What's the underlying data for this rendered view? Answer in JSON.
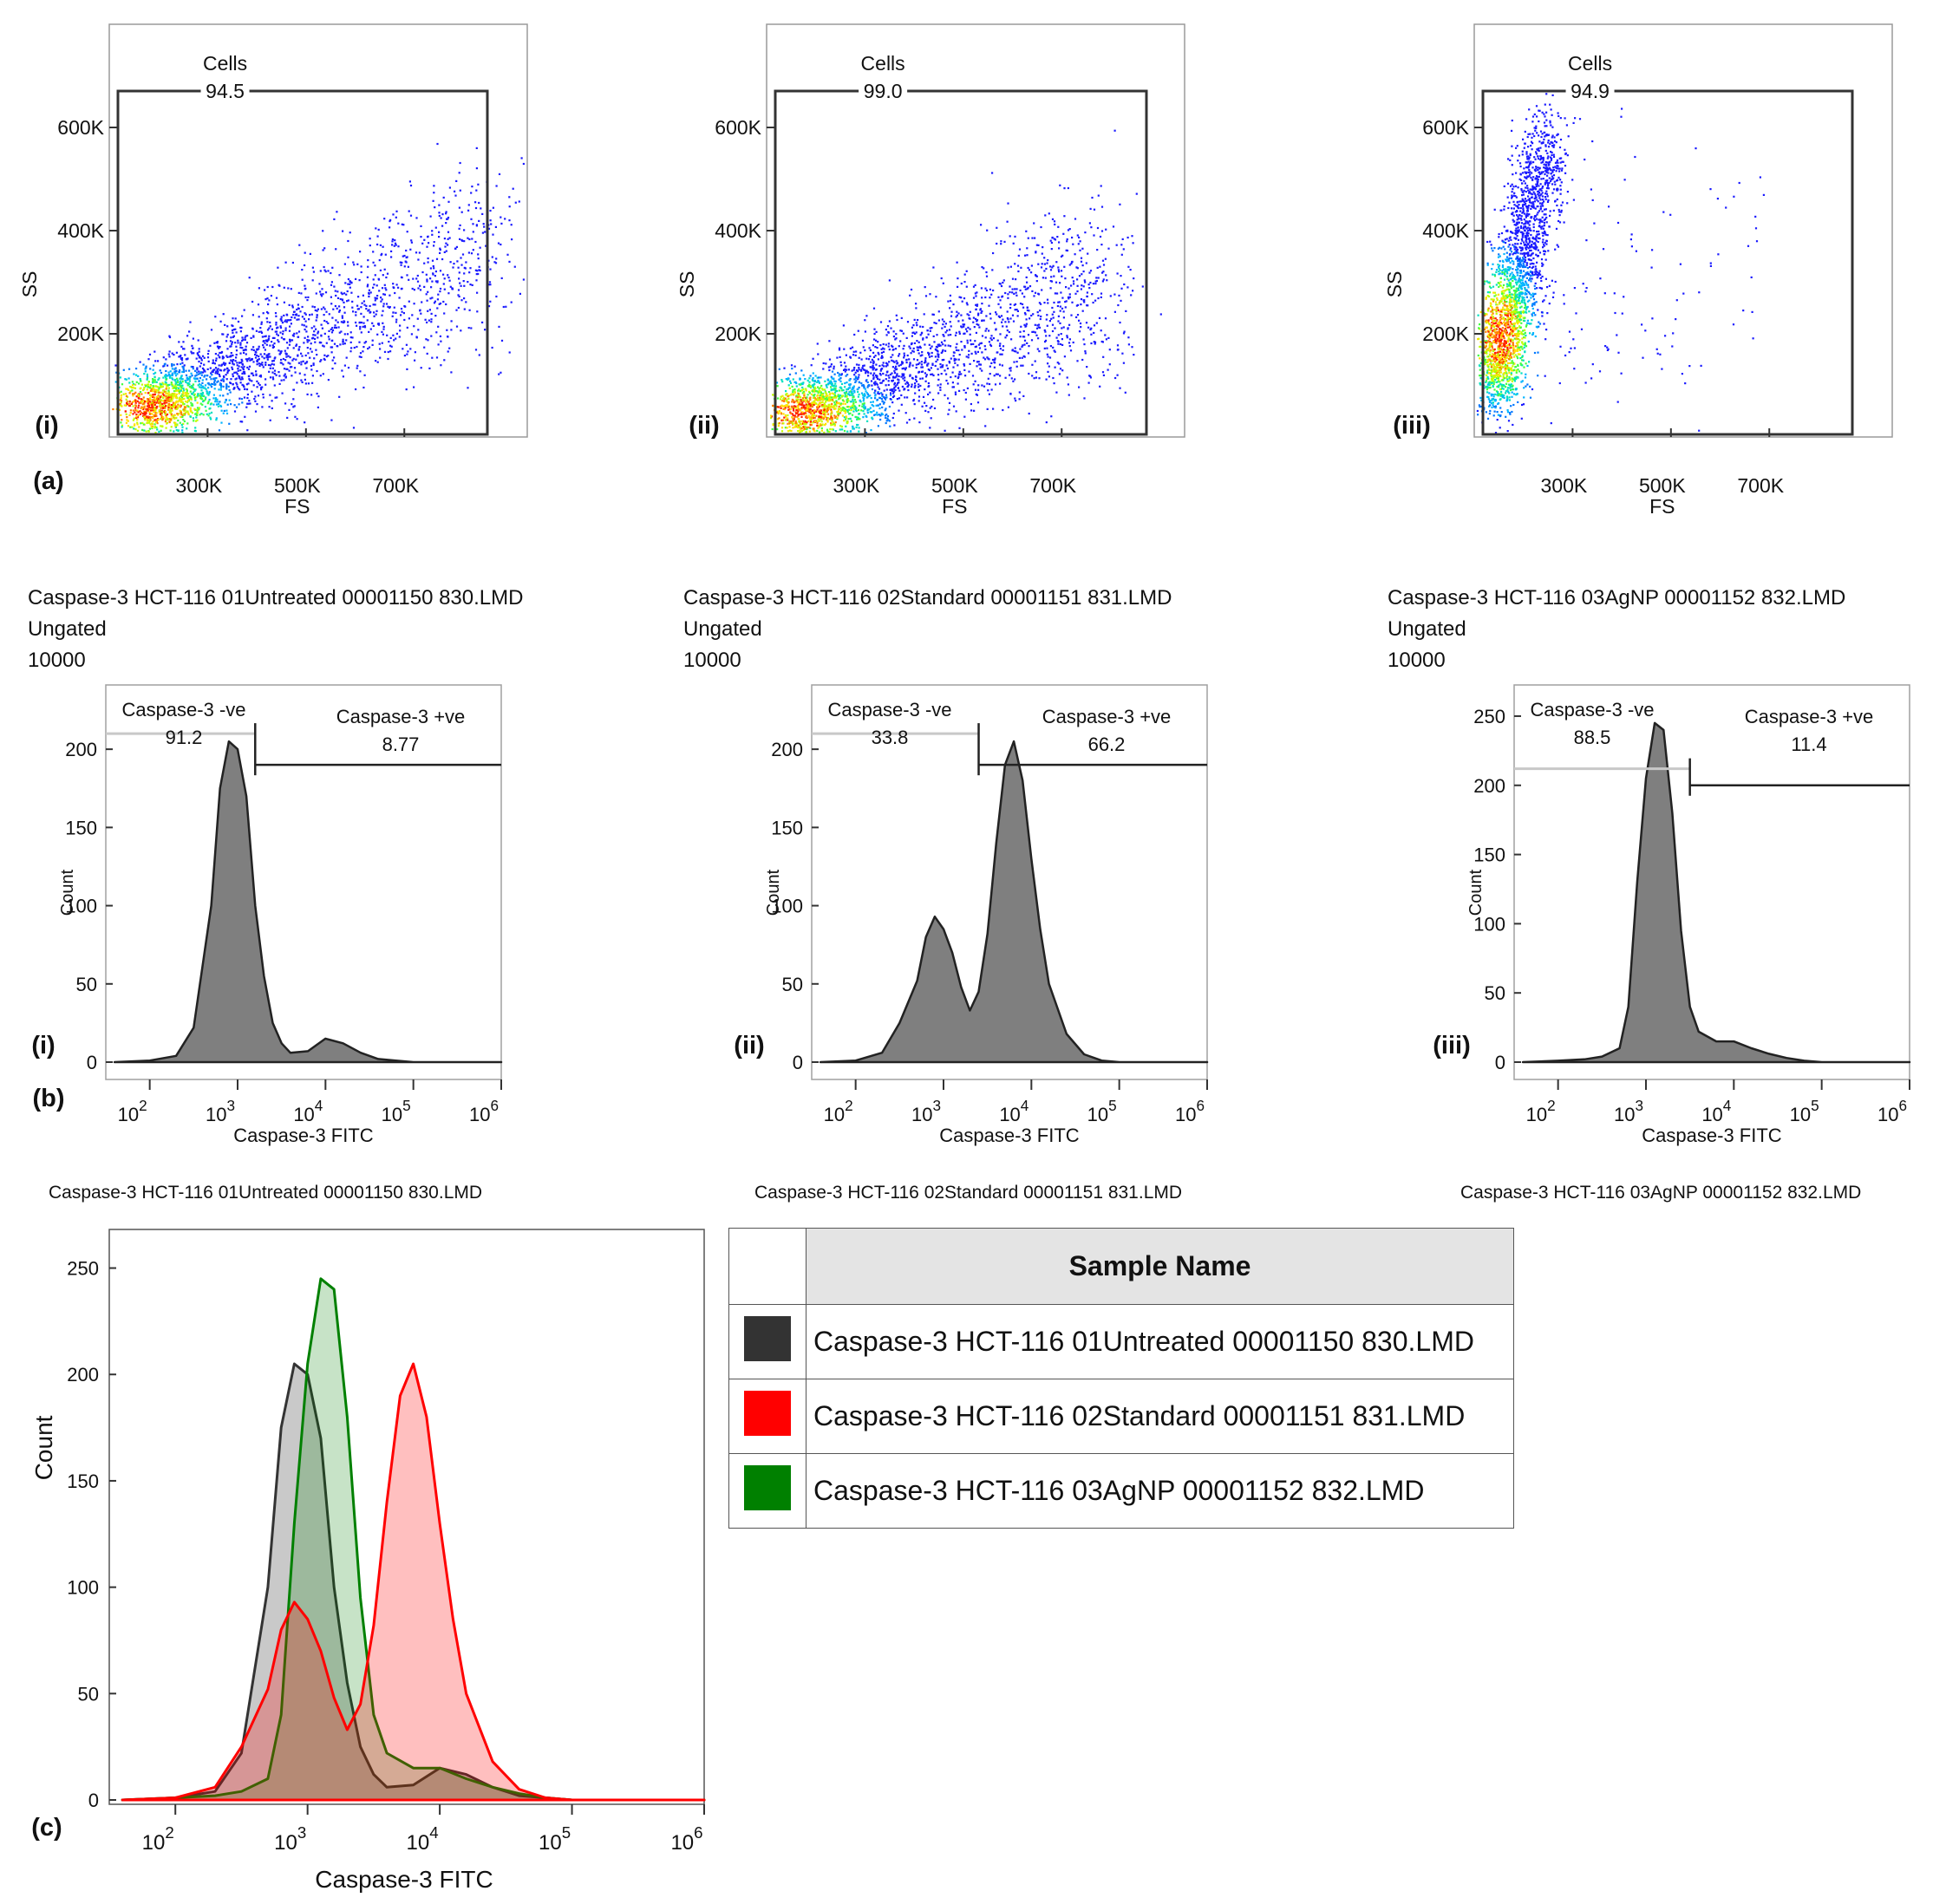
{
  "figure": {
    "panel_letters": [
      "(a)",
      "(b)",
      "(c)"
    ],
    "roman": [
      "(i)",
      "(ii)",
      "(iii)"
    ]
  },
  "scatter_panels": [
    {
      "gate_name": "Cells",
      "gate_value": "94.5",
      "x_label": "FS",
      "y_label": "SS",
      "x_ticks": [
        "300K",
        "500K",
        "700K"
      ],
      "y_ticks": [
        "200K",
        "400K",
        "600K"
      ]
    },
    {
      "gate_name": "Cells",
      "gate_value": "99.0",
      "x_label": "FS",
      "y_label": "SS",
      "x_ticks": [
        "300K",
        "500K",
        "700K"
      ],
      "y_ticks": [
        "200K",
        "400K",
        "600K"
      ]
    },
    {
      "gate_name": "Cells",
      "gate_value": "94.9",
      "x_label": "FS",
      "y_label": "SS",
      "x_ticks": [
        "300K",
        "500K",
        "700K"
      ],
      "y_ticks": [
        "200K",
        "400K",
        "600K"
      ]
    }
  ],
  "histogram_panels": [
    {
      "sample": "Caspase-3 HCT-116 01Untreated 00001150 830.LMD",
      "gate": "Ungated",
      "events": "10000",
      "neg_label": "Caspase-3 -ve",
      "neg_value": "91.2",
      "pos_label": "Caspase-3 +ve",
      "pos_value": "8.77",
      "caption": "Caspase-3 HCT-116 01Untreated 00001150 830.LMD"
    },
    {
      "sample": "Caspase-3 HCT-116 02Standard 00001151 831.LMD",
      "gate": "Ungated",
      "events": "10000",
      "neg_label": "Caspase-3 -ve",
      "neg_value": "33.8",
      "pos_label": "Caspase-3 +ve",
      "pos_value": "66.2",
      "caption": "Caspase-3 HCT-116 02Standard 00001151 831.LMD"
    },
    {
      "sample": "Caspase-3 HCT-116 03AgNP 00001152 832.LMD",
      "gate": "Ungated",
      "events": "10000",
      "neg_label": "Caspase-3 -ve",
      "neg_value": "88.5",
      "pos_label": "Caspase-3 +ve",
      "pos_value": "11.4",
      "caption": "Caspase-3 HCT-116 03AgNP 00001152 832.LMD"
    }
  ],
  "legend": {
    "header": "Sample Name",
    "rows": [
      {
        "label": "Caspase-3 HCT-116 01Untreated 00001150 830.LMD",
        "color": "#333333"
      },
      {
        "label": "Caspase-3 HCT-116 02Standard 00001151 831.LMD",
        "color": "#ff0000"
      },
      {
        "label": "Caspase-3 HCT-116 03AgNP 00001152 832.LMD",
        "color": "#008000"
      }
    ]
  },
  "chart_data": [
    {
      "type": "scatter",
      "title": "(a)(i)",
      "xlabel": "FS",
      "ylabel": "SS",
      "xlim": [
        100000,
        950000
      ],
      "ylim": [
        0,
        800000
      ],
      "x_ticks": [
        300000,
        500000,
        700000
      ],
      "y_ticks": [
        200000,
        400000,
        600000
      ],
      "gate": {
        "name": "Cells",
        "percent": 94.5
      },
      "cloud": {
        "center": [
          180000,
          60000
        ],
        "trend": "diagonal, spreading to 900K FS / 350K SS"
      }
    },
    {
      "type": "scatter",
      "title": "(a)(ii)",
      "xlabel": "FS",
      "ylabel": "SS",
      "xlim": [
        100000,
        950000
      ],
      "ylim": [
        0,
        800000
      ],
      "x_ticks": [
        300000,
        500000,
        700000
      ],
      "y_ticks": [
        200000,
        400000,
        600000
      ],
      "gate": {
        "name": "Cells",
        "percent": 99.0
      },
      "cloud": {
        "center": [
          170000,
          50000
        ],
        "trend": "diagonal, spreading to 850K FS / 300K SS"
      }
    },
    {
      "type": "scatter",
      "title": "(a)(iii)",
      "xlabel": "FS",
      "ylabel": "SS",
      "xlim": [
        100000,
        950000
      ],
      "ylim": [
        0,
        800000
      ],
      "x_ticks": [
        300000,
        500000,
        700000
      ],
      "y_ticks": [
        200000,
        400000,
        600000
      ],
      "gate": {
        "name": "Cells",
        "percent": 94.9
      },
      "cloud": {
        "center": [
          150000,
          200000
        ],
        "trend": "steep vertical band reaching 700K SS"
      }
    },
    {
      "type": "area",
      "title": "Caspase-3 HCT-116 01Untreated 00001150 830.LMD",
      "xlabel": "Caspase-3 FITC",
      "ylabel": "Count",
      "xscale": "log",
      "xlim": [
        1.5,
        6
      ],
      "ylim": [
        0,
        230
      ],
      "x_ticks": [
        "10^2",
        "10^3",
        "10^4",
        "10^5",
        "10^6"
      ],
      "y_ticks": [
        0,
        50,
        100,
        150,
        200
      ],
      "gates": [
        {
          "name": "Caspase-3 -ve",
          "percent": 91.2
        },
        {
          "name": "Caspase-3 +ve",
          "percent": 8.77
        }
      ],
      "x": [
        1.6,
        2.0,
        2.3,
        2.5,
        2.7,
        2.8,
        2.9,
        3.0,
        3.1,
        3.2,
        3.3,
        3.4,
        3.5,
        3.6,
        3.8,
        4.0,
        4.2,
        4.4,
        4.6,
        4.8,
        5.0,
        5.5,
        6.0
      ],
      "values": [
        0,
        1,
        4,
        22,
        100,
        175,
        205,
        200,
        170,
        100,
        55,
        25,
        12,
        6,
        7,
        15,
        12,
        6,
        2,
        1,
        0,
        0,
        0
      ]
    },
    {
      "type": "area",
      "title": "Caspase-3 HCT-116 02Standard 00001151 831.LMD",
      "xlabel": "Caspase-3 FITC",
      "ylabel": "Count",
      "xscale": "log",
      "xlim": [
        1.5,
        6
      ],
      "ylim": [
        0,
        230
      ],
      "x_ticks": [
        "10^2",
        "10^3",
        "10^4",
        "10^5",
        "10^6"
      ],
      "y_ticks": [
        0,
        50,
        100,
        150,
        200
      ],
      "gates": [
        {
          "name": "Caspase-3 -ve",
          "percent": 33.8
        },
        {
          "name": "Caspase-3 +ve",
          "percent": 66.2
        }
      ],
      "x": [
        1.6,
        2.0,
        2.3,
        2.5,
        2.7,
        2.8,
        2.9,
        3.0,
        3.1,
        3.2,
        3.3,
        3.4,
        3.5,
        3.6,
        3.7,
        3.8,
        3.9,
        4.0,
        4.1,
        4.2,
        4.4,
        4.6,
        4.8,
        5.0,
        5.5,
        6.0
      ],
      "values": [
        0,
        1,
        6,
        25,
        52,
        80,
        93,
        85,
        70,
        48,
        33,
        45,
        82,
        140,
        190,
        205,
        180,
        130,
        85,
        50,
        18,
        5,
        1,
        0,
        0,
        0
      ]
    },
    {
      "type": "area",
      "title": "Caspase-3 HCT-116 03AgNP 00001152 832.LMD",
      "xlabel": "Caspase-3 FITC",
      "ylabel": "Count",
      "xscale": "log",
      "xlim": [
        1.5,
        6
      ],
      "ylim": [
        0,
        260
      ],
      "x_ticks": [
        "10^2",
        "10^3",
        "10^4",
        "10^5",
        "10^6"
      ],
      "y_ticks": [
        0,
        50,
        100,
        150,
        200,
        250
      ],
      "gates": [
        {
          "name": "Caspase-3 -ve",
          "percent": 88.5
        },
        {
          "name": "Caspase-3 +ve",
          "percent": 11.4
        }
      ],
      "x": [
        1.6,
        2.0,
        2.3,
        2.5,
        2.7,
        2.8,
        2.9,
        3.0,
        3.1,
        3.2,
        3.3,
        3.4,
        3.5,
        3.6,
        3.8,
        4.0,
        4.2,
        4.4,
        4.6,
        4.8,
        5.0,
        5.5,
        6.0
      ],
      "values": [
        0,
        1,
        2,
        4,
        10,
        40,
        130,
        205,
        245,
        240,
        180,
        95,
        40,
        22,
        15,
        15,
        10,
        6,
        3,
        1,
        0,
        0,
        0
      ]
    },
    {
      "type": "area",
      "title": "(c) overlay",
      "xlabel": "Caspase-3 FITC",
      "ylabel": "Count",
      "xscale": "log",
      "xlim": [
        1.5,
        6
      ],
      "ylim": [
        0,
        260
      ],
      "x_ticks": [
        "10^2",
        "10^3",
        "10^4",
        "10^5",
        "10^6"
      ],
      "y_ticks": [
        0,
        50,
        100,
        150,
        200,
        250
      ],
      "series": [
        {
          "name": "Caspase-3 HCT-116 01Untreated 00001150 830.LMD",
          "color": "#333333",
          "x": [
            1.6,
            2.0,
            2.3,
            2.5,
            2.7,
            2.8,
            2.9,
            3.0,
            3.1,
            3.2,
            3.3,
            3.4,
            3.5,
            3.6,
            3.8,
            4.0,
            4.2,
            4.4,
            4.6,
            4.8,
            5.0,
            5.5,
            6.0
          ],
          "values": [
            0,
            1,
            4,
            22,
            100,
            175,
            205,
            200,
            170,
            100,
            55,
            25,
            12,
            6,
            7,
            15,
            12,
            6,
            2,
            1,
            0,
            0,
            0
          ]
        },
        {
          "name": "Caspase-3 HCT-116 02Standard 00001151 831.LMD",
          "color": "#ff0000",
          "x": [
            1.6,
            2.0,
            2.3,
            2.5,
            2.7,
            2.8,
            2.9,
            3.0,
            3.1,
            3.2,
            3.3,
            3.4,
            3.5,
            3.6,
            3.7,
            3.8,
            3.9,
            4.0,
            4.1,
            4.2,
            4.4,
            4.6,
            4.8,
            5.0,
            5.5,
            6.0
          ],
          "values": [
            0,
            1,
            6,
            25,
            52,
            80,
            93,
            85,
            70,
            48,
            33,
            45,
            82,
            140,
            190,
            205,
            180,
            130,
            85,
            50,
            18,
            5,
            1,
            0,
            0,
            0
          ]
        },
        {
          "name": "Caspase-3 HCT-116 03AgNP 00001152 832.LMD",
          "color": "#008000",
          "x": [
            1.6,
            2.0,
            2.3,
            2.5,
            2.7,
            2.8,
            2.9,
            3.0,
            3.1,
            3.2,
            3.3,
            3.4,
            3.5,
            3.6,
            3.8,
            4.0,
            4.2,
            4.4,
            4.6,
            4.8,
            5.0,
            5.5,
            6.0
          ],
          "values": [
            0,
            1,
            2,
            4,
            10,
            40,
            130,
            205,
            245,
            240,
            180,
            95,
            40,
            22,
            15,
            15,
            10,
            6,
            3,
            1,
            0,
            0,
            0
          ]
        }
      ]
    }
  ]
}
